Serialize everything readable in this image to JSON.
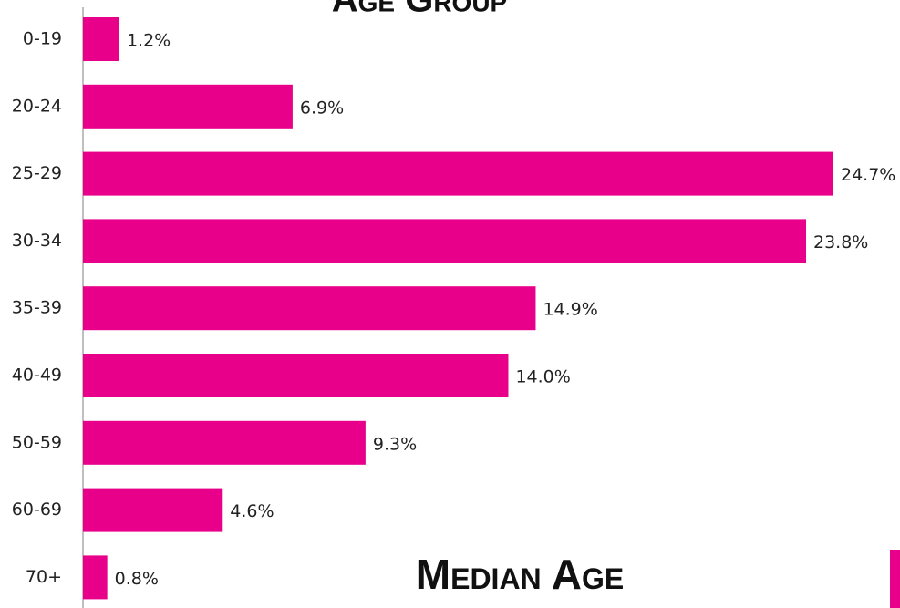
{
  "chart_data": {
    "type": "bar",
    "orientation": "horizontal",
    "title": "Age Group",
    "subtitle": "Median Age",
    "categories": [
      "0-19",
      "20-24",
      "25-29",
      "30-34",
      "35-39",
      "40-49",
      "50-59",
      "60-69",
      "70+"
    ],
    "values": [
      1.2,
      6.9,
      24.7,
      23.8,
      14.9,
      14.0,
      9.3,
      4.6,
      0.8
    ],
    "value_labels": [
      "1.2%",
      "6.9%",
      "24.7%",
      "23.8%",
      "14.9%",
      "14.0%",
      "9.3%",
      "4.6%",
      "0.8%"
    ],
    "color": "#e8008a"
  }
}
